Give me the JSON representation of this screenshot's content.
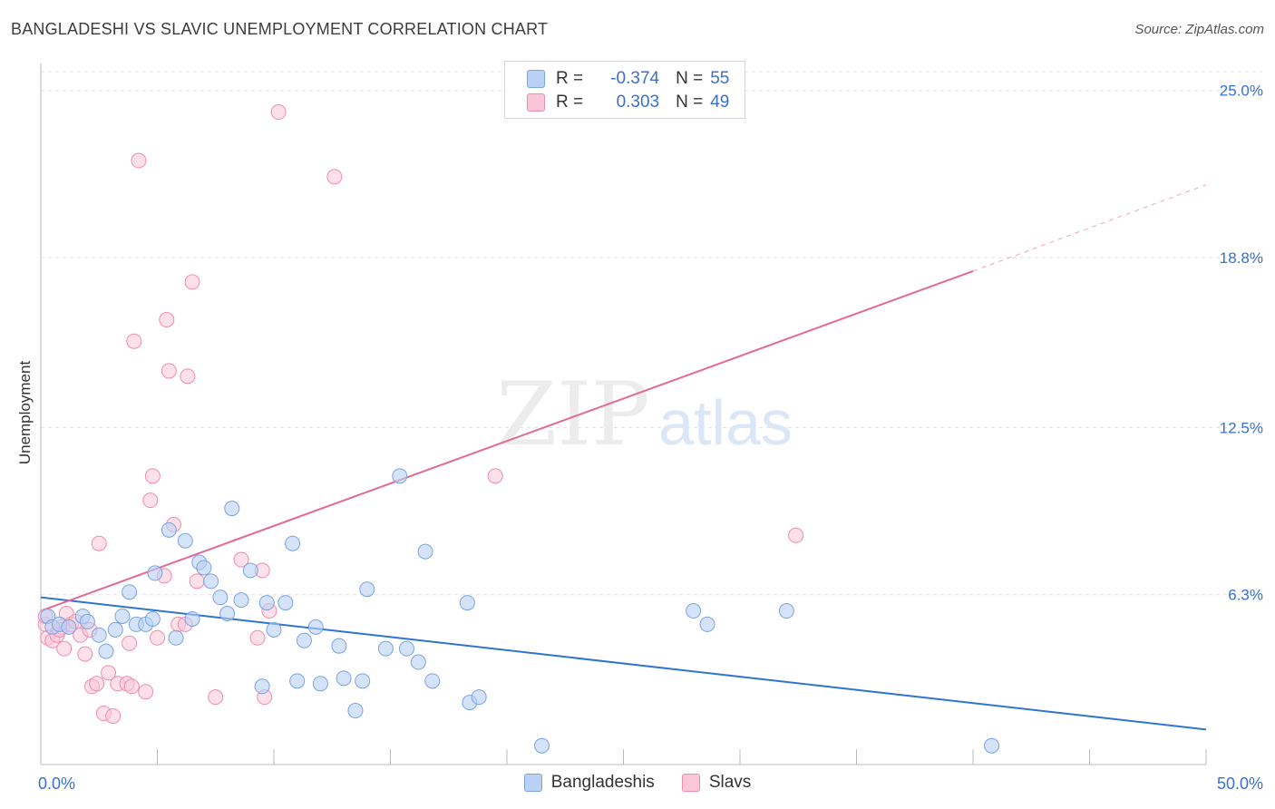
{
  "title": "BANGLADESHI VS SLAVIC UNEMPLOYMENT CORRELATION CHART",
  "source": "Source: ZipAtlas.com",
  "watermark": {
    "zip": "ZIP",
    "atlas": "atlas"
  },
  "legend": {
    "r_label": "R =",
    "n_label": "N =",
    "rows": [
      {
        "name": "Bangladeshis",
        "r": "-0.374",
        "n": "55"
      },
      {
        "name": "Slavs",
        "r": "0.303",
        "n": "49"
      }
    ]
  },
  "colors": {
    "blue_fill": "#b9d1f5",
    "blue_stroke": "#7aa3e0",
    "blue_line": "#2f74d0",
    "pink_fill": "#fbc6d6",
    "pink_stroke": "#f08caf",
    "pink_line": "#e26a96",
    "tick_label": "#3a6fd0",
    "grid": "#e0e0e0"
  },
  "chart_data": {
    "type": "scatter",
    "title": "BANGLADESHI VS SLAVIC UNEMPLOYMENT CORRELATION CHART",
    "xlabel": "",
    "ylabel": "Unemployment",
    "xlim": [
      0,
      50
    ],
    "ylim": [
      0,
      26
    ],
    "x_tick_labels": [
      {
        "value": 0,
        "label": "0.0%"
      },
      {
        "value": 50,
        "label": "50.0%"
      }
    ],
    "y_tick_labels": [
      {
        "value": 6.3,
        "label": "6.3%"
      },
      {
        "value": 12.5,
        "label": "12.5%"
      },
      {
        "value": 18.8,
        "label": "18.8%"
      },
      {
        "value": 25.0,
        "label": "25.0%"
      }
    ],
    "grid": true,
    "legend_position": "top-center",
    "series": [
      {
        "name": "Bangladeshis",
        "r": -0.374,
        "n": 55,
        "points": [
          [
            0.3,
            5.5
          ],
          [
            0.5,
            5.1
          ],
          [
            0.8,
            5.2
          ],
          [
            1.2,
            5.1
          ],
          [
            1.8,
            5.5
          ],
          [
            2.0,
            5.3
          ],
          [
            2.5,
            4.8
          ],
          [
            2.8,
            4.2
          ],
          [
            3.2,
            5.0
          ],
          [
            3.5,
            5.5
          ],
          [
            3.8,
            6.4
          ],
          [
            4.1,
            5.2
          ],
          [
            4.5,
            5.2
          ],
          [
            4.8,
            5.4
          ],
          [
            4.9,
            7.1
          ],
          [
            5.8,
            4.7
          ],
          [
            5.5,
            8.7
          ],
          [
            6.2,
            8.3
          ],
          [
            6.5,
            5.4
          ],
          [
            6.8,
            7.5
          ],
          [
            7.0,
            7.3
          ],
          [
            7.3,
            6.8
          ],
          [
            7.7,
            6.2
          ],
          [
            8.0,
            5.6
          ],
          [
            8.2,
            9.5
          ],
          [
            8.6,
            6.1
          ],
          [
            9.0,
            7.2
          ],
          [
            9.5,
            2.9
          ],
          [
            9.7,
            6.0
          ],
          [
            10.0,
            5.0
          ],
          [
            10.5,
            6.0
          ],
          [
            10.8,
            8.2
          ],
          [
            11.0,
            3.1
          ],
          [
            11.3,
            4.6
          ],
          [
            11.8,
            5.1
          ],
          [
            12.0,
            3.0
          ],
          [
            12.8,
            4.4
          ],
          [
            13.0,
            3.2
          ],
          [
            13.5,
            2.0
          ],
          [
            13.8,
            3.1
          ],
          [
            14.0,
            6.5
          ],
          [
            14.8,
            4.3
          ],
          [
            15.4,
            10.7
          ],
          [
            15.7,
            4.3
          ],
          [
            16.2,
            3.8
          ],
          [
            16.5,
            7.9
          ],
          [
            16.8,
            3.1
          ],
          [
            18.4,
            2.3
          ],
          [
            18.3,
            6.0
          ],
          [
            18.8,
            2.5
          ],
          [
            21.5,
            0.7
          ],
          [
            32.0,
            5.7
          ],
          [
            28.0,
            5.7
          ],
          [
            28.6,
            5.2
          ],
          [
            40.8,
            0.7
          ]
        ],
        "trend": {
          "x": [
            0,
            50
          ],
          "y": [
            6.2,
            1.3
          ]
        }
      },
      {
        "name": "Slavs",
        "r": 0.303,
        "n": 49,
        "points": [
          [
            0.2,
            5.2
          ],
          [
            0.3,
            4.7
          ],
          [
            0.5,
            4.6
          ],
          [
            0.7,
            4.8
          ],
          [
            0.9,
            5.1
          ],
          [
            1.0,
            4.3
          ],
          [
            1.1,
            5.6
          ],
          [
            1.3,
            5.2
          ],
          [
            1.5,
            5.3
          ],
          [
            1.7,
            4.8
          ],
          [
            1.9,
            4.1
          ],
          [
            2.1,
            5.0
          ],
          [
            2.2,
            2.9
          ],
          [
            2.4,
            3.0
          ],
          [
            2.5,
            8.2
          ],
          [
            2.7,
            1.9
          ],
          [
            2.9,
            3.4
          ],
          [
            3.1,
            1.8
          ],
          [
            3.3,
            3.0
          ],
          [
            3.7,
            3.0
          ],
          [
            3.8,
            4.5
          ],
          [
            3.9,
            2.9
          ],
          [
            4.0,
            15.7
          ],
          [
            4.2,
            22.4
          ],
          [
            4.5,
            2.7
          ],
          [
            4.7,
            9.8
          ],
          [
            4.8,
            10.7
          ],
          [
            5.0,
            4.7
          ],
          [
            5.3,
            7.0
          ],
          [
            5.4,
            16.5
          ],
          [
            5.5,
            14.6
          ],
          [
            5.7,
            8.9
          ],
          [
            5.9,
            5.2
          ],
          [
            6.2,
            5.2
          ],
          [
            6.3,
            14.4
          ],
          [
            6.5,
            17.9
          ],
          [
            6.7,
            6.8
          ],
          [
            7.5,
            2.5
          ],
          [
            8.6,
            7.6
          ],
          [
            9.3,
            4.7
          ],
          [
            9.5,
            7.2
          ],
          [
            9.6,
            2.5
          ],
          [
            9.8,
            5.7
          ],
          [
            10.2,
            24.2
          ],
          [
            12.6,
            21.8
          ],
          [
            19.5,
            10.7
          ],
          [
            32.4,
            8.5
          ],
          [
            0.2,
            5.5
          ],
          [
            0.8,
            5.0
          ]
        ],
        "trend": {
          "x": [
            0,
            40
          ],
          "y": [
            5.7,
            18.3
          ]
        },
        "trend_extension": {
          "x": [
            40,
            50
          ],
          "y": [
            18.3,
            21.5
          ]
        }
      }
    ]
  }
}
